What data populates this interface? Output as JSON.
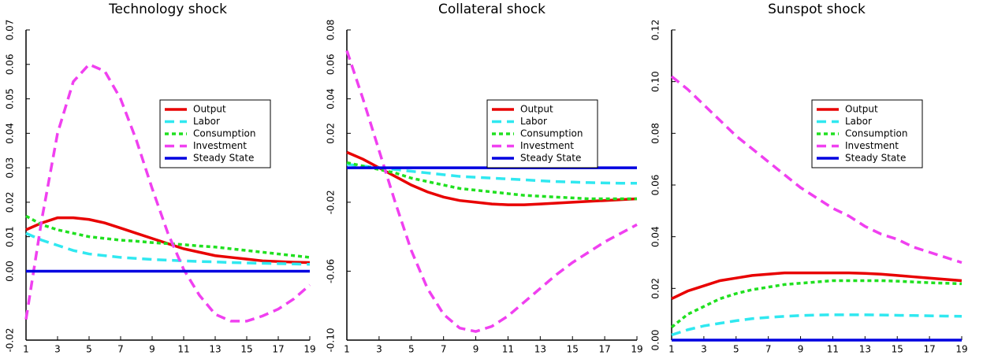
{
  "chart_data": [
    {
      "type": "line",
      "title": "Technology shock",
      "x": [
        1,
        2,
        3,
        4,
        5,
        6,
        7,
        8,
        9,
        10,
        11,
        12,
        13,
        14,
        15,
        16,
        17,
        18,
        19
      ],
      "xlim": [
        1,
        19
      ],
      "xticks": [
        1,
        3,
        5,
        7,
        9,
        11,
        13,
        15,
        17,
        19
      ],
      "ylim": [
        -0.02,
        0.07
      ],
      "yticks": [
        -0.02,
        {
          "value": 0,
          "label": "0.00"
        },
        0.01,
        0.02,
        0.03,
        0.04,
        0.05,
        0.06,
        0.07
      ],
      "legend": "right",
      "series": [
        {
          "name": "Output",
          "color": "#e80000",
          "style": "solid",
          "values": [
            0.012,
            0.014,
            0.0155,
            0.0155,
            0.015,
            0.014,
            0.0125,
            0.011,
            0.0095,
            0.008,
            0.0065,
            0.0055,
            0.0045,
            0.004,
            0.0035,
            0.003,
            0.0028,
            0.0026,
            0.0025
          ]
        },
        {
          "name": "Labor",
          "color": "#30e8f0",
          "style": "dashed",
          "values": [
            0.011,
            0.009,
            0.0075,
            0.006,
            0.005,
            0.0045,
            0.004,
            0.0037,
            0.0034,
            0.0032,
            0.003,
            0.0028,
            0.0027,
            0.0025,
            0.0024,
            0.0023,
            0.0022,
            0.0021,
            0.002
          ]
        },
        {
          "name": "Consumption",
          "color": "#20e020",
          "style": "dotted",
          "values": [
            0.016,
            0.0135,
            0.012,
            0.011,
            0.01,
            0.0095,
            0.009,
            0.0087,
            0.0083,
            0.008,
            0.0077,
            0.0073,
            0.007,
            0.0065,
            0.006,
            0.0055,
            0.005,
            0.0045,
            0.004
          ]
        },
        {
          "name": "Investment",
          "color": "#f040f0",
          "style": "dashed",
          "values": [
            -0.014,
            0.015,
            0.04,
            0.055,
            0.06,
            0.058,
            0.05,
            0.038,
            0.024,
            0.011,
            0.0005,
            -0.007,
            -0.0125,
            -0.0145,
            -0.0145,
            -0.013,
            -0.011,
            -0.008,
            -0.004
          ]
        },
        {
          "name": "Steady State",
          "color": "#0000e0",
          "style": "solid",
          "values": [
            0,
            0,
            0,
            0,
            0,
            0,
            0,
            0,
            0,
            0,
            0,
            0,
            0,
            0,
            0,
            0,
            0,
            0,
            0
          ]
        }
      ]
    },
    {
      "type": "line",
      "title": "Collateral shock",
      "x": [
        1,
        2,
        3,
        4,
        5,
        6,
        7,
        8,
        9,
        10,
        11,
        12,
        13,
        14,
        15,
        16,
        17,
        18,
        19
      ],
      "xlim": [
        1,
        19
      ],
      "xticks": [
        1,
        3,
        5,
        7,
        9,
        11,
        13,
        15,
        17,
        19
      ],
      "ylim": [
        -0.1,
        0.08
      ],
      "yticks": [
        {
          "value": -0.1,
          "label": "-0.10"
        },
        -0.06,
        -0.02,
        0.02,
        0.04,
        0.06,
        0.08
      ],
      "legend": "right",
      "series": [
        {
          "name": "Output",
          "color": "#e80000",
          "style": "solid",
          "values": [
            0.009,
            0.005,
            0.0,
            -0.005,
            -0.01,
            -0.014,
            -0.017,
            -0.019,
            -0.02,
            -0.021,
            -0.0215,
            -0.0215,
            -0.021,
            -0.0205,
            -0.02,
            -0.0195,
            -0.019,
            -0.0185,
            -0.018
          ]
        },
        {
          "name": "Labor",
          "color": "#30e8f0",
          "style": "dashed",
          "values": [
            0.002,
            0.001,
            0.0,
            -0.001,
            -0.002,
            -0.003,
            -0.004,
            -0.005,
            -0.0055,
            -0.006,
            -0.0065,
            -0.007,
            -0.0075,
            -0.008,
            -0.0083,
            -0.0086,
            -0.0088,
            -0.009,
            -0.009
          ]
        },
        {
          "name": "Consumption",
          "color": "#20e020",
          "style": "dotted",
          "values": [
            0.003,
            0.001,
            -0.001,
            -0.003,
            -0.006,
            -0.008,
            -0.01,
            -0.012,
            -0.013,
            -0.014,
            -0.015,
            -0.016,
            -0.0165,
            -0.017,
            -0.0175,
            -0.018,
            -0.018,
            -0.018,
            -0.018
          ]
        },
        {
          "name": "Investment",
          "color": "#f040f0",
          "style": "dashed",
          "values": [
            0.068,
            0.04,
            0.01,
            -0.02,
            -0.048,
            -0.07,
            -0.085,
            -0.093,
            -0.095,
            -0.092,
            -0.086,
            -0.078,
            -0.07,
            -0.062,
            -0.055,
            -0.049,
            -0.043,
            -0.038,
            -0.033
          ]
        },
        {
          "name": "Steady State",
          "color": "#0000e0",
          "style": "solid",
          "values": [
            0,
            0,
            0,
            0,
            0,
            0,
            0,
            0,
            0,
            0,
            0,
            0,
            0,
            0,
            0,
            0,
            0,
            0,
            0
          ]
        }
      ]
    },
    {
      "type": "line",
      "title": "Sunspot shock",
      "x": [
        1,
        2,
        3,
        4,
        5,
        6,
        7,
        8,
        9,
        10,
        11,
        12,
        13,
        14,
        15,
        16,
        17,
        18,
        19
      ],
      "xlim": [
        1,
        19
      ],
      "xticks": [
        1,
        3,
        5,
        7,
        9,
        11,
        13,
        15,
        17,
        19
      ],
      "ylim": [
        0,
        0.12
      ],
      "yticks": [
        {
          "value": 0,
          "label": "0.00"
        },
        0.02,
        0.04,
        0.06,
        0.08,
        {
          "value": 0.1,
          "label": "0.10"
        },
        0.12
      ],
      "legend": "right",
      "series": [
        {
          "name": "Output",
          "color": "#e80000",
          "style": "solid",
          "values": [
            0.016,
            0.019,
            0.021,
            0.023,
            0.024,
            0.025,
            0.0255,
            0.026,
            0.026,
            0.026,
            0.026,
            0.026,
            0.0258,
            0.0255,
            0.025,
            0.0245,
            0.024,
            0.0235,
            0.023
          ]
        },
        {
          "name": "Labor",
          "color": "#30e8f0",
          "style": "dashed",
          "values": [
            0.002,
            0.004,
            0.0055,
            0.0065,
            0.0075,
            0.0083,
            0.0088,
            0.0092,
            0.0095,
            0.0097,
            0.0098,
            0.0098,
            0.0098,
            0.0097,
            0.0096,
            0.0095,
            0.0094,
            0.0093,
            0.0092
          ]
        },
        {
          "name": "Consumption",
          "color": "#20e020",
          "style": "dotted",
          "values": [
            0.005,
            0.01,
            0.013,
            0.016,
            0.018,
            0.0195,
            0.0205,
            0.0215,
            0.022,
            0.0225,
            0.023,
            0.023,
            0.023,
            0.023,
            0.0228,
            0.0225,
            0.0222,
            0.022,
            0.0218
          ]
        },
        {
          "name": "Investment",
          "color": "#f040f0",
          "style": "dashed",
          "values": [
            0.102,
            0.097,
            0.091,
            0.085,
            0.079,
            0.074,
            0.069,
            0.064,
            0.059,
            0.055,
            0.051,
            0.048,
            0.044,
            0.041,
            0.039,
            0.036,
            0.034,
            0.032,
            0.03
          ]
        },
        {
          "name": "Steady State",
          "color": "#0000e0",
          "style": "solid",
          "values": [
            0,
            0,
            0,
            0,
            0,
            0,
            0,
            0,
            0,
            0,
            0,
            0,
            0,
            0,
            0,
            0,
            0,
            0,
            0
          ]
        }
      ]
    }
  ]
}
